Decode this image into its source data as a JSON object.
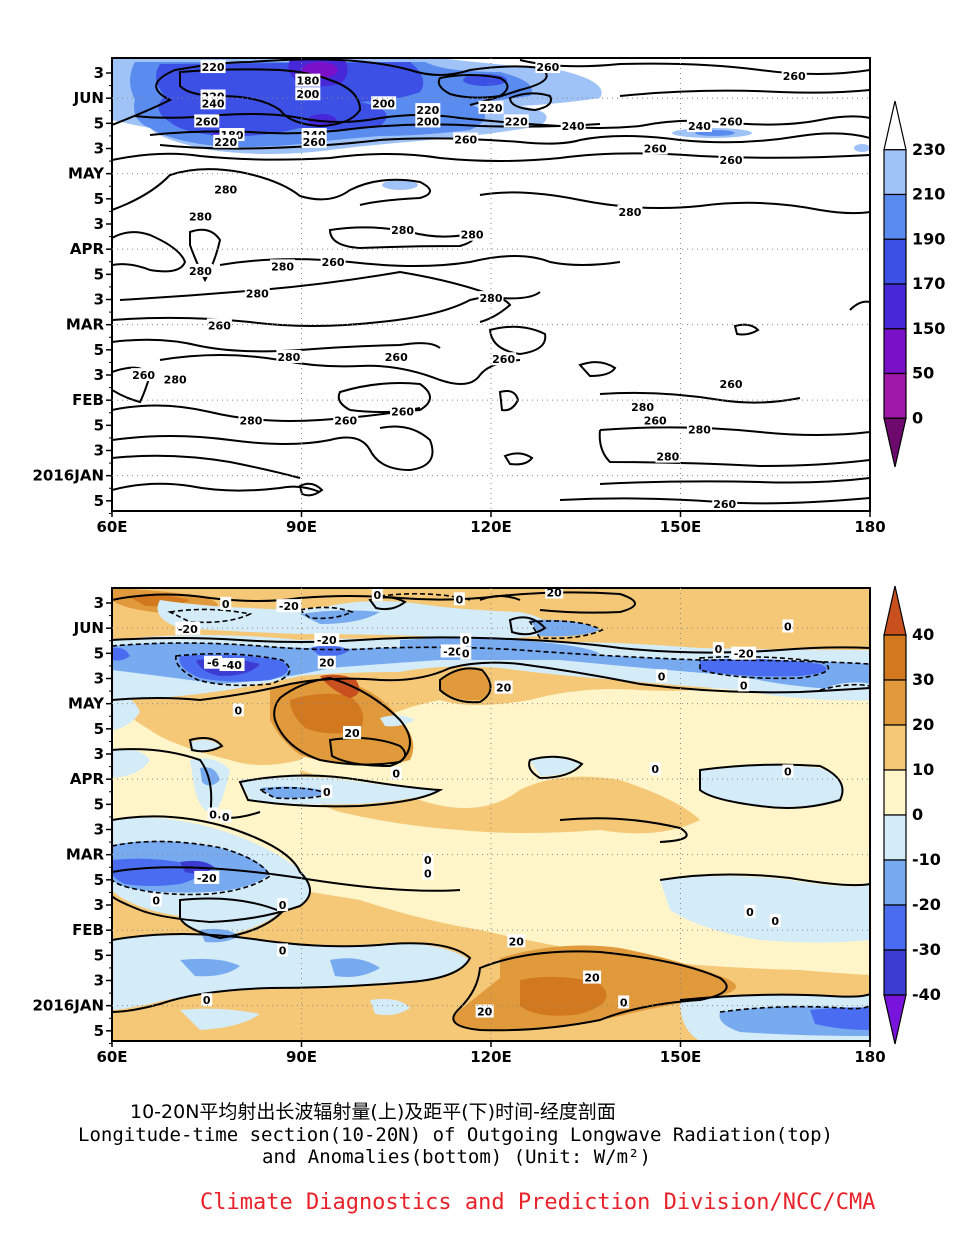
{
  "title_cn": "10-20N平均射出长波辐射量(上)及距平(下)时间-经度剖面",
  "title_en_line1": "Longitude-time section(10-20N) of Outgoing Longwave Radiation(top)",
  "title_en_line2": "and Anomalies(bottom) (Unit: W/m²)",
  "organization": "Climate Diagnostics and Prediction Division/NCC/CMA",
  "chart_data": [
    {
      "type": "heatmap",
      "name": "olr-top",
      "x_ticks": [
        "60E",
        "90E",
        "120E",
        "150E",
        "180"
      ],
      "y_ticks": [
        "3",
        "JUN",
        "5",
        "3",
        "MAY",
        "5",
        "3",
        "APR",
        "5",
        "3",
        "MAR",
        "5",
        "3",
        "FEB",
        "5",
        "3",
        "2016JAN",
        "5"
      ],
      "colorbar": {
        "labels": [
          "230",
          "210",
          "190",
          "170",
          "150",
          "50",
          "0"
        ],
        "colors": [
          "#ffffff",
          "#9fc2f7",
          "#5a8cf0",
          "#3c50e6",
          "#4628d8",
          "#7a10c8",
          "#a018a8",
          "#6e0a6e"
        ]
      },
      "contour_labels": [
        {
          "text": "220",
          "lon": 76,
          "t": 0.02
        },
        {
          "text": "180",
          "lon": 91,
          "t": 0.05
        },
        {
          "text": "200",
          "lon": 91,
          "t": 0.08
        },
        {
          "text": "220",
          "lon": 76,
          "t": 0.085
        },
        {
          "text": "240",
          "lon": 76,
          "t": 0.1
        },
        {
          "text": "200",
          "lon": 103,
          "t": 0.1
        },
        {
          "text": "220",
          "lon": 110,
          "t": 0.115
        },
        {
          "text": "220",
          "lon": 120,
          "t": 0.11
        },
        {
          "text": "200",
          "lon": 110,
          "t": 0.14
        },
        {
          "text": "220",
          "lon": 124,
          "t": 0.14
        },
        {
          "text": "260",
          "lon": 75,
          "t": 0.14
        },
        {
          "text": "180",
          "lon": 79,
          "t": 0.17
        },
        {
          "text": "220",
          "lon": 78,
          "t": 0.185
        },
        {
          "text": "240",
          "lon": 92,
          "t": 0.17
        },
        {
          "text": "260",
          "lon": 92,
          "t": 0.185
        },
        {
          "text": "260",
          "lon": 116,
          "t": 0.18
        },
        {
          "text": "240",
          "lon": 133,
          "t": 0.15
        },
        {
          "text": "260",
          "lon": 129,
          "t": 0.02
        },
        {
          "text": "260",
          "lon": 168,
          "t": 0.04
        },
        {
          "text": "240",
          "lon": 153,
          "t": 0.15
        },
        {
          "text": "260",
          "lon": 158,
          "t": 0.14
        },
        {
          "text": "260",
          "lon": 146,
          "t": 0.2
        },
        {
          "text": "260",
          "lon": 158,
          "t": 0.225
        },
        {
          "text": "280",
          "lon": 78,
          "t": 0.29
        },
        {
          "text": "280",
          "lon": 74,
          "t": 0.35
        },
        {
          "text": "280",
          "lon": 106,
          "t": 0.38
        },
        {
          "text": "280",
          "lon": 117,
          "t": 0.39
        },
        {
          "text": "280",
          "lon": 142,
          "t": 0.34
        },
        {
          "text": "280",
          "lon": 74,
          "t": 0.47
        },
        {
          "text": "280",
          "lon": 87,
          "t": 0.46
        },
        {
          "text": "260",
          "lon": 95,
          "t": 0.45
        },
        {
          "text": "280",
          "lon": 83,
          "t": 0.52
        },
        {
          "text": "280",
          "lon": 120,
          "t": 0.53
        },
        {
          "text": "260",
          "lon": 77,
          "t": 0.59
        },
        {
          "text": "280",
          "lon": 88,
          "t": 0.66
        },
        {
          "text": "260",
          "lon": 105,
          "t": 0.66
        },
        {
          "text": "260",
          "lon": 122,
          "t": 0.665
        },
        {
          "text": "260",
          "lon": 65,
          "t": 0.7
        },
        {
          "text": "280",
          "lon": 70,
          "t": 0.71
        },
        {
          "text": "260",
          "lon": 158,
          "t": 0.72
        },
        {
          "text": "280",
          "lon": 144,
          "t": 0.77
        },
        {
          "text": "260",
          "lon": 106,
          "t": 0.78
        },
        {
          "text": "280",
          "lon": 82,
          "t": 0.8
        },
        {
          "text": "260",
          "lon": 97,
          "t": 0.8
        },
        {
          "text": "260",
          "lon": 146,
          "t": 0.8
        },
        {
          "text": "280",
          "lon": 153,
          "t": 0.82
        },
        {
          "text": "280",
          "lon": 148,
          "t": 0.88
        },
        {
          "text": "260",
          "lon": 157,
          "t": 0.985
        }
      ]
    },
    {
      "type": "heatmap",
      "name": "olr-anomaly-bottom",
      "x_ticks": [
        "60E",
        "90E",
        "120E",
        "150E",
        "180"
      ],
      "y_ticks": [
        "3",
        "JUN",
        "5",
        "3",
        "MAY",
        "5",
        "3",
        "APR",
        "5",
        "3",
        "MAR",
        "5",
        "3",
        "FEB",
        "5",
        "3",
        "2016JAN",
        "5"
      ],
      "colorbar": {
        "labels": [
          "40",
          "30",
          "20",
          "10",
          "0",
          "-10",
          "-20",
          "-30",
          "-40"
        ],
        "colors": [
          "#c8501e",
          "#d2781e",
          "#e09a3c",
          "#f5c878",
          "#fff5c8",
          "#d4ebf8",
          "#78aaf0",
          "#4a6cf0",
          "#3c3cd2",
          "#7814dc"
        ]
      },
      "contour_labels": [
        {
          "text": "0",
          "lon": 78,
          "t": 0.035
        },
        {
          "text": "-20",
          "lon": 88,
          "t": 0.04
        },
        {
          "text": "0",
          "lon": 102,
          "t": 0.015
        },
        {
          "text": "0",
          "lon": 115,
          "t": 0.025
        },
        {
          "text": "20",
          "lon": 130,
          "t": 0.01
        },
        {
          "text": "-20",
          "lon": 72,
          "t": 0.09
        },
        {
          "text": "-20",
          "lon": 94,
          "t": 0.115
        },
        {
          "text": "0",
          "lon": 116,
          "t": 0.115
        },
        {
          "text": "-20",
          "lon": 114,
          "t": 0.14
        },
        {
          "text": "0",
          "lon": 116,
          "t": 0.145
        },
        {
          "text": "-6",
          "lon": 76,
          "t": 0.165
        },
        {
          "text": "-40",
          "lon": 79,
          "t": 0.17
        },
        {
          "text": "20",
          "lon": 94,
          "t": 0.165
        },
        {
          "text": "0",
          "lon": 167,
          "t": 0.085
        },
        {
          "text": "0",
          "lon": 156,
          "t": 0.135
        },
        {
          "text": "-20",
          "lon": 160,
          "t": 0.145
        },
        {
          "text": "0",
          "lon": 147,
          "t": 0.195
        },
        {
          "text": "0",
          "lon": 160,
          "t": 0.215
        },
        {
          "text": "20",
          "lon": 122,
          "t": 0.22
        },
        {
          "text": "0",
          "lon": 80,
          "t": 0.27
        },
        {
          "text": "20",
          "lon": 98,
          "t": 0.32
        },
        {
          "text": "0",
          "lon": 105,
          "t": 0.41
        },
        {
          "text": "0",
          "lon": 146,
          "t": 0.4
        },
        {
          "text": "0",
          "lon": 167,
          "t": 0.405
        },
        {
          "text": "0",
          "lon": 94,
          "t": 0.45
        },
        {
          "text": "0",
          "lon": 76,
          "t": 0.5
        },
        {
          "text": "0",
          "lon": 78,
          "t": 0.505
        },
        {
          "text": "0",
          "lon": 110,
          "t": 0.6
        },
        {
          "text": "0",
          "lon": 110,
          "t": 0.63
        },
        {
          "text": "-20",
          "lon": 75,
          "t": 0.64
        },
        {
          "text": "0",
          "lon": 67,
          "t": 0.69
        },
        {
          "text": "0",
          "lon": 87,
          "t": 0.7
        },
        {
          "text": "0",
          "lon": 161,
          "t": 0.715
        },
        {
          "text": "0",
          "lon": 165,
          "t": 0.735
        },
        {
          "text": "20",
          "lon": 124,
          "t": 0.78
        },
        {
          "text": "0",
          "lon": 87,
          "t": 0.8
        },
        {
          "text": "20",
          "lon": 136,
          "t": 0.86
        },
        {
          "text": "0",
          "lon": 75,
          "t": 0.91
        },
        {
          "text": "0",
          "lon": 141,
          "t": 0.915
        },
        {
          "text": "20",
          "lon": 119,
          "t": 0.935
        }
      ]
    }
  ]
}
